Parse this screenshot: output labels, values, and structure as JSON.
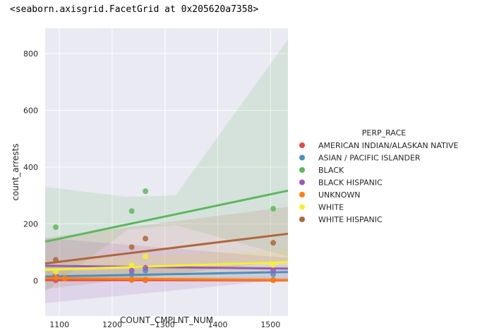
{
  "output_text": "<seaborn.axisgrid.FacetGrid at 0x205620a7358>",
  "chart_data": {
    "type": "scatter",
    "xlabel": "COUNT_CMPLNT_NUM",
    "ylabel": "count_arrests",
    "xlim": [
      1073,
      1533
    ],
    "ylim": [
      -125,
      890
    ],
    "xticks": [
      1100,
      1200,
      1300,
      1400,
      1500
    ],
    "yticks": [
      0,
      200,
      400,
      600,
      800
    ],
    "grid": true,
    "legend_title": "PERP_RACE",
    "legend_position": "right",
    "series": [
      {
        "name": "AMERICAN INDIAN/ALASKAN NATIVE",
        "color": "#e24a4a",
        "x": [
          1093,
          1237,
          1263,
          1505
        ],
        "y": [
          1,
          2,
          1,
          1
        ],
        "fit": [
          [
            1073,
            2
          ],
          [
            1533,
            1
          ]
        ],
        "ci_upper": [
          [
            1073,
            6
          ],
          [
            1533,
            6
          ]
        ],
        "ci_lower": [
          [
            1073,
            -3
          ],
          [
            1533,
            -4
          ]
        ]
      },
      {
        "name": "ASIAN / PACIFIC ISLANDER",
        "color": "#4a90c4",
        "x": [
          1093,
          1237,
          1263,
          1505
        ],
        "y": [
          12,
          22,
          35,
          22
        ],
        "fit": [
          [
            1073,
            14
          ],
          [
            1533,
            30
          ]
        ],
        "ci_upper": [
          [
            1073,
            32
          ],
          [
            1533,
            55
          ]
        ],
        "ci_lower": [
          [
            1073,
            -5
          ],
          [
            1533,
            5
          ]
        ]
      },
      {
        "name": "BLACK",
        "color": "#5cb85c",
        "x": [
          1093,
          1237,
          1263,
          1505
        ],
        "y": [
          188,
          245,
          315,
          253
        ],
        "fit": [
          [
            1073,
            137
          ],
          [
            1533,
            317
          ]
        ],
        "ci_upper": [
          [
            1073,
            330
          ],
          [
            1230,
            295
          ],
          [
            1320,
            300
          ],
          [
            1533,
            850
          ]
        ],
        "ci_lower": [
          [
            1073,
            -40
          ],
          [
            1230,
            180
          ],
          [
            1320,
            195
          ],
          [
            1533,
            85
          ]
        ]
      },
      {
        "name": "BLACK HISPANIC",
        "color": "#9b59b6",
        "x": [
          1093,
          1237,
          1263,
          1505
        ],
        "y": [
          20,
          35,
          45,
          35
        ],
        "fit": [
          [
            1073,
            52
          ],
          [
            1533,
            42
          ]
        ],
        "ci_upper": [
          [
            1073,
            150
          ],
          [
            1533,
            80
          ]
        ],
        "ci_lower": [
          [
            1073,
            -80
          ],
          [
            1533,
            5
          ]
        ]
      },
      {
        "name": "UNKNOWN",
        "color": "#ff7f0e",
        "x": [
          1093,
          1110,
          1237,
          1263,
          1505
        ],
        "y": [
          10,
          8,
          4,
          3,
          2
        ],
        "fit": [
          [
            1073,
            8
          ],
          [
            1533,
            2
          ]
        ],
        "ci_upper": [
          [
            1073,
            16
          ],
          [
            1533,
            10
          ]
        ],
        "ci_lower": [
          [
            1073,
            0
          ],
          [
            1533,
            -6
          ]
        ]
      },
      {
        "name": "WHITE",
        "color": "#f2f230",
        "x": [
          1093,
          1237,
          1263,
          1505
        ],
        "y": [
          30,
          55,
          85,
          55
        ],
        "fit": [
          [
            1073,
            38
          ],
          [
            1533,
            65
          ]
        ],
        "ci_upper": [
          [
            1073,
            70
          ],
          [
            1533,
            110
          ]
        ],
        "ci_lower": [
          [
            1073,
            5
          ],
          [
            1533,
            20
          ]
        ]
      },
      {
        "name": "WHITE HISPANIC",
        "color": "#b0663a",
        "x": [
          1093,
          1237,
          1263,
          1505
        ],
        "y": [
          73,
          118,
          148,
          133
        ],
        "fit": [
          [
            1073,
            60
          ],
          [
            1533,
            165
          ]
        ],
        "ci_upper": [
          [
            1073,
            150
          ],
          [
            1533,
            260
          ]
        ],
        "ci_lower": [
          [
            1073,
            -30
          ],
          [
            1533,
            70
          ]
        ]
      }
    ]
  }
}
